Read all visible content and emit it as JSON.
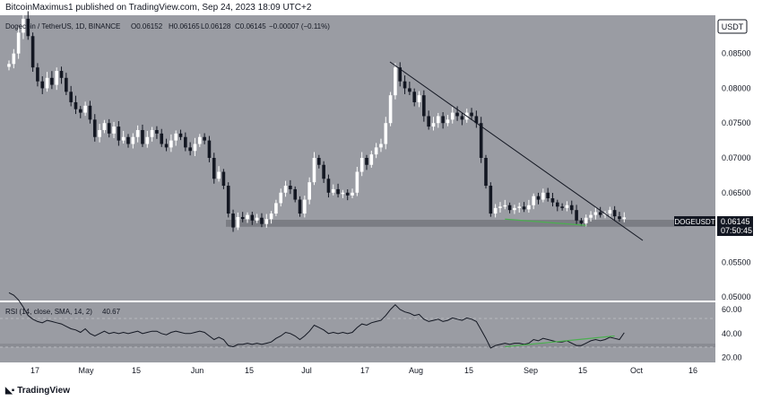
{
  "header": {
    "publisher": "BitcoinMaximus1",
    "published_text": "BitcoinMaximus1 published on TradingView.com, Sep 24, 2023 18:09 UTC+2"
  },
  "legend": {
    "symbol": "Dogecoin / TetherUS, 1D, BINANCE",
    "open": "O0.06152",
    "high": "H0.06165",
    "low": "L0.06128",
    "close": "C0.06145",
    "change": "−0.00007 (−0.11%)"
  },
  "currency_badge": "USDT",
  "price_tag": {
    "symbol": "DOGEUSDT",
    "price": "0.06145",
    "countdown": "07:50:45"
  },
  "rsi": {
    "label": "RSI (14, close, SMA, 14, 2)",
    "value": "40.67"
  },
  "branding": {
    "logo_text": "TradingView"
  },
  "colors": {
    "pane_bg": "#9a9ca3",
    "bull": "#ffffff",
    "bear": "#131722",
    "support_band": "#7b7d84",
    "divergence": "#4caf50",
    "tag_bg": "#131722"
  },
  "chart_data": [
    {
      "type": "candlestick",
      "title": "Dogecoin / TetherUS, 1D, BINANCE",
      "ylabel": "USDT",
      "ylim": [
        0.0495,
        0.0905
      ],
      "y_ticks": [
        "0.08500",
        "0.08000",
        "0.07500",
        "0.07000",
        "0.06500",
        "0.06000",
        "0.05500",
        "0.05000"
      ],
      "x_ticks": [
        "17",
        "May",
        "15",
        "Jun",
        "15",
        "Jul",
        "17",
        "Aug",
        "15",
        "Sep",
        "15",
        "Oct",
        "16"
      ],
      "closes": [
        0.0835,
        0.085,
        0.088,
        0.09,
        0.0875,
        0.083,
        0.081,
        0.08,
        0.0815,
        0.0805,
        0.0825,
        0.0815,
        0.0795,
        0.078,
        0.077,
        0.0765,
        0.0775,
        0.0755,
        0.073,
        0.074,
        0.075,
        0.0735,
        0.0745,
        0.0725,
        0.073,
        0.072,
        0.073,
        0.074,
        0.072,
        0.073,
        0.074,
        0.0735,
        0.072,
        0.0715,
        0.0725,
        0.0735,
        0.073,
        0.0715,
        0.071,
        0.072,
        0.073,
        0.0725,
        0.07,
        0.067,
        0.068,
        0.066,
        0.062,
        0.06,
        0.0615,
        0.0612,
        0.0618,
        0.061,
        0.0614,
        0.0605,
        0.0612,
        0.062,
        0.0635,
        0.065,
        0.066,
        0.0655,
        0.064,
        0.062,
        0.064,
        0.0665,
        0.07,
        0.069,
        0.067,
        0.065,
        0.0655,
        0.0648,
        0.065,
        0.0646,
        0.065,
        0.068,
        0.07,
        0.069,
        0.0705,
        0.0715,
        0.072,
        0.075,
        0.079,
        0.083,
        0.081,
        0.08,
        0.0795,
        0.078,
        0.079,
        0.076,
        0.0745,
        0.075,
        0.076,
        0.075,
        0.0755,
        0.0765,
        0.076,
        0.0755,
        0.0765,
        0.076,
        0.075,
        0.07,
        0.066,
        0.062,
        0.0628,
        0.063,
        0.0632,
        0.0625,
        0.0628,
        0.063,
        0.0626,
        0.0632,
        0.0645,
        0.064,
        0.065,
        0.0642,
        0.0636,
        0.063,
        0.0628,
        0.0632,
        0.0625,
        0.061,
        0.0606,
        0.0614,
        0.0618,
        0.0622,
        0.0618,
        0.062,
        0.0625,
        0.0616,
        0.0612,
        0.06145
      ],
      "support_zone": [
        0.0601,
        0.0611
      ],
      "last_price": 0.06145
    },
    {
      "type": "line",
      "title": "RSI (14, close, SMA, 14, 2)",
      "ylim": [
        16,
        66
      ],
      "y_ticks": [
        "60.00",
        "40.00",
        "20.00"
      ],
      "band_levels": [
        30,
        70
      ],
      "values": [
        74,
        72,
        68,
        62,
        55,
        52,
        50,
        49,
        51,
        50,
        49,
        48,
        46,
        44,
        43,
        41,
        44,
        40,
        38,
        40,
        42,
        40,
        41,
        40,
        41,
        40,
        41,
        42,
        40,
        41,
        42,
        42,
        40,
        39,
        41,
        42,
        41,
        40,
        40,
        41,
        42,
        41,
        38,
        35,
        37,
        35,
        30,
        29,
        31,
        31,
        32,
        31,
        32,
        31,
        32,
        33,
        36,
        38,
        41,
        40,
        38,
        35,
        38,
        42,
        47,
        45,
        43,
        40,
        41,
        40,
        41,
        40,
        41,
        45,
        48,
        47,
        49,
        50,
        51,
        55,
        60,
        64,
        60,
        58,
        57,
        55,
        56,
        52,
        50,
        51,
        52,
        50,
        51,
        53,
        52,
        51,
        53,
        52,
        50,
        43,
        36,
        28,
        30,
        31,
        32,
        31,
        32,
        32,
        31,
        32,
        35,
        34,
        36,
        35,
        34,
        33,
        33,
        34,
        32,
        30,
        30,
        32,
        34,
        35,
        34,
        35,
        37,
        36,
        35,
        40.67
      ],
      "divergence_price": {
        "from_index": 104,
        "to_index": 121,
        "values": [
          0.0612,
          0.0603
        ]
      },
      "divergence_rsi": {
        "from_index": 104,
        "to_index": 127,
        "values": [
          29,
          38
        ]
      }
    }
  ]
}
